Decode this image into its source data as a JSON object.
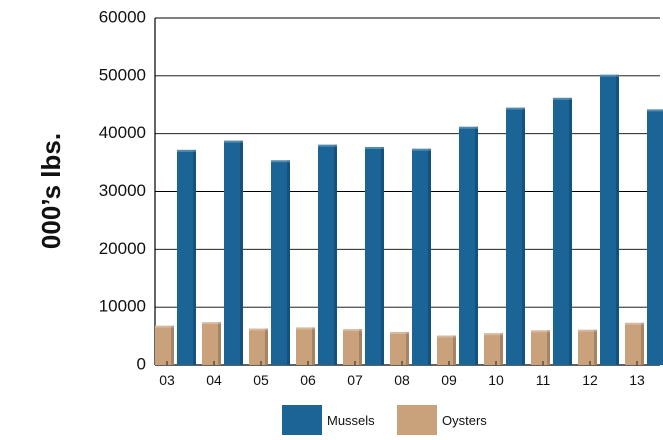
{
  "chart_data": {
    "type": "bar",
    "categories": [
      "03",
      "04",
      "05",
      "06",
      "07",
      "08",
      "09",
      "10",
      "11",
      "12",
      "13"
    ],
    "series": [
      {
        "name": "Mussels",
        "color": "#1a6496",
        "values": [
          37200,
          38800,
          35400,
          38100,
          37700,
          37400,
          41200,
          44500,
          46200,
          50200,
          44200
        ]
      },
      {
        "name": "Oysters",
        "color": "#c9a27c",
        "values": [
          6800,
          7400,
          6300,
          6500,
          6200,
          5700,
          5100,
          5500,
          6000,
          6100,
          7300
        ]
      }
    ],
    "ylabel": "000’s lbs.",
    "xlabel": "",
    "title": "",
    "ylim": [
      0,
      60000
    ],
    "yticks": [
      "0",
      "10000",
      "20000",
      "30000",
      "40000",
      "50000",
      "60000"
    ],
    "grid": "horizontal",
    "legend_position": "bottom-center"
  }
}
